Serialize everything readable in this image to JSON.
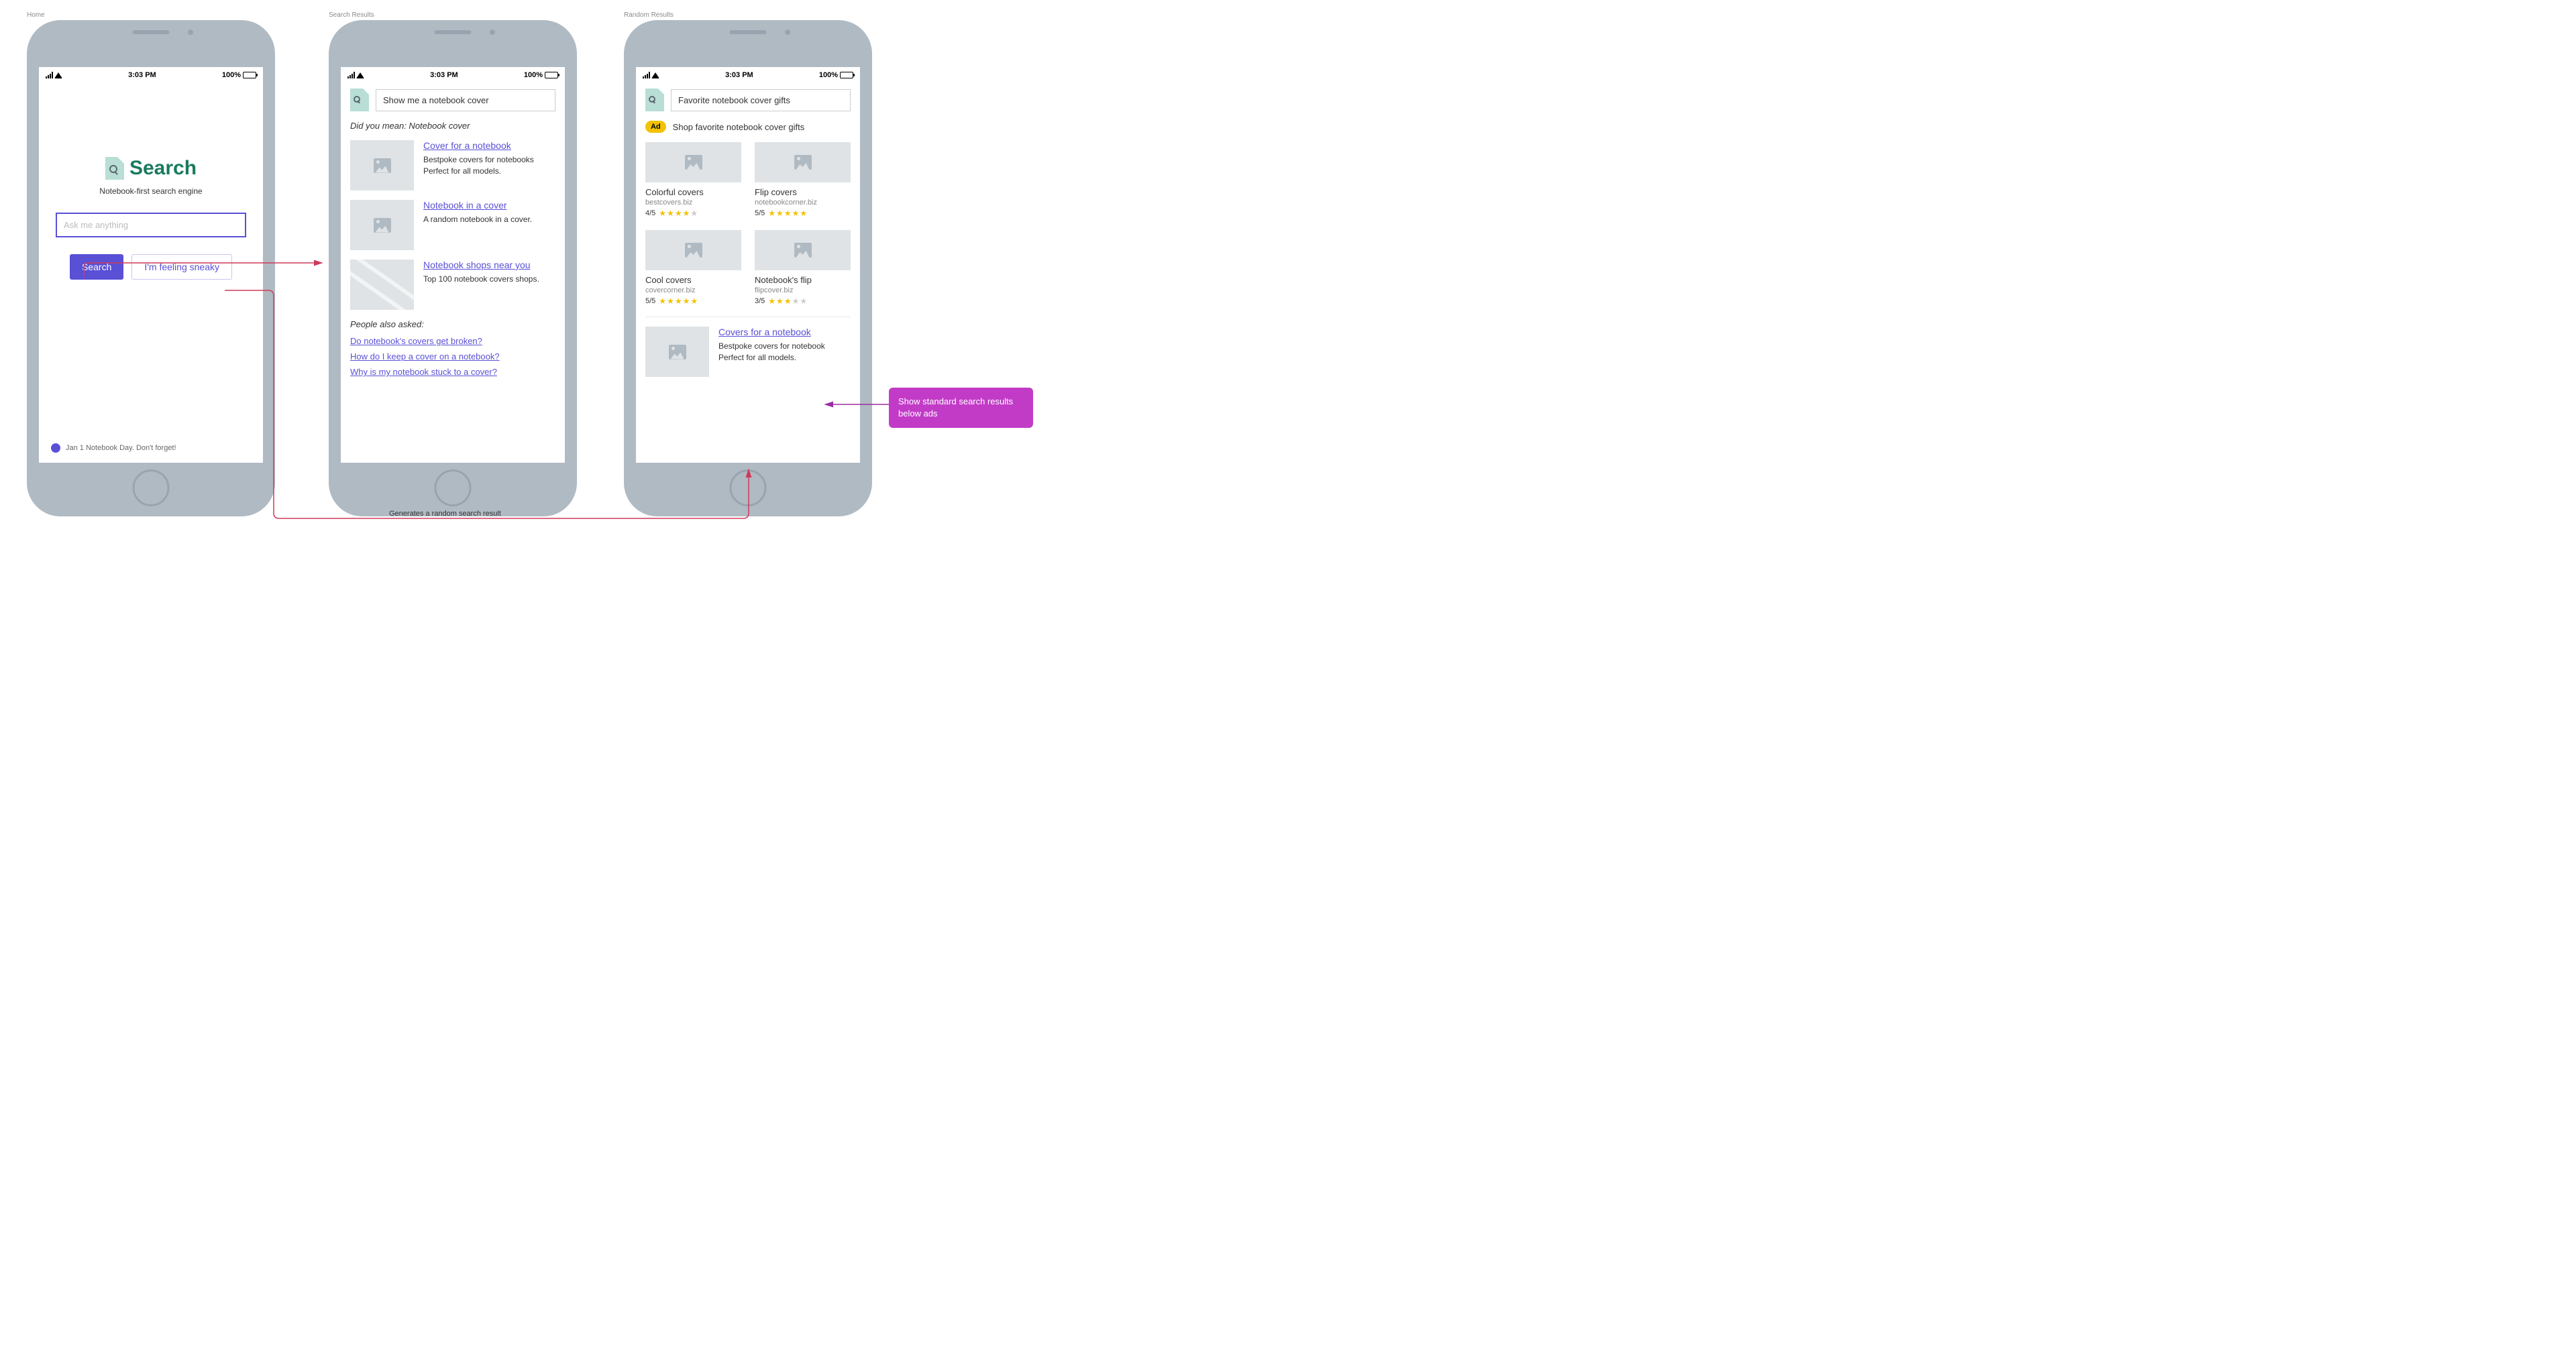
{
  "labels": {
    "home": "Home",
    "search_results": "Search Results",
    "random_results": "Random Results"
  },
  "status": {
    "time": "3:03 PM",
    "battery": "100%"
  },
  "home": {
    "logo": "Search",
    "tagline": "Notebook-first search engine",
    "placeholder": "Ask me anything",
    "btn_search": "Search",
    "btn_sneaky": "I'm feeling sneaky",
    "footer": "Jan 1 Notebook Day. Don't forget!"
  },
  "results": {
    "query": "Show me a notebook cover",
    "did_you_mean": "Did you mean: Notebook cover",
    "items": [
      {
        "title": "Cover for a notebook",
        "desc": "Bestpoke covers for notebooks Perfect for all models.",
        "thumb": "image"
      },
      {
        "title": "Notebook in a cover",
        "desc": "A random notebook in a cover.",
        "thumb": "image"
      },
      {
        "title": "Notebook shops near you",
        "desc": "Top 100 notebook covers shops.",
        "thumb": "map"
      }
    ],
    "people_asked_title": "People also asked:",
    "people_asked": [
      "Do notebook's covers get broken?",
      "How do I keep a cover on a notebook?",
      "Why is my notebook stuck to a cover?"
    ]
  },
  "random": {
    "query": "Favorite notebook cover gifts",
    "ad_badge": "Ad",
    "ad_text": "Shop favorite notebook cover gifts",
    "shops": [
      {
        "title": "Colorful covers",
        "domain": "bestcovers.biz",
        "rating": "4/5",
        "stars": 4
      },
      {
        "title": "Flip covers",
        "domain": "notebookcorner.biz",
        "rating": "5/5",
        "stars": 5
      },
      {
        "title": "Cool covers",
        "domain": "covercorner.biz",
        "rating": "5/5",
        "stars": 5
      },
      {
        "title": "Notebook's flip",
        "domain": "flipcover.biz",
        "rating": "3/5",
        "stars": 3
      }
    ],
    "below_ad": {
      "title": "Covers for a notebook",
      "desc": "Bestpoke covers for notebook Perfect for all models."
    }
  },
  "callout": "Show standard search results below ads",
  "flow_label": "Generates a random search result",
  "colors": {
    "phone_body": "#b0bac3",
    "accent": "#5950d6",
    "logo_green": "#1a7a5e",
    "logo_bg": "#b8ded5",
    "ad_yellow": "#f2c200",
    "callout": "#c23bc7",
    "arrow": "#cf3a5a",
    "callout_arrow": "#9a2ea0",
    "thumb": "#dfe3e6"
  },
  "layout": {
    "phone_positions": [
      20,
      470,
      910
    ],
    "phone_width": 370,
    "phone_height": 740
  }
}
